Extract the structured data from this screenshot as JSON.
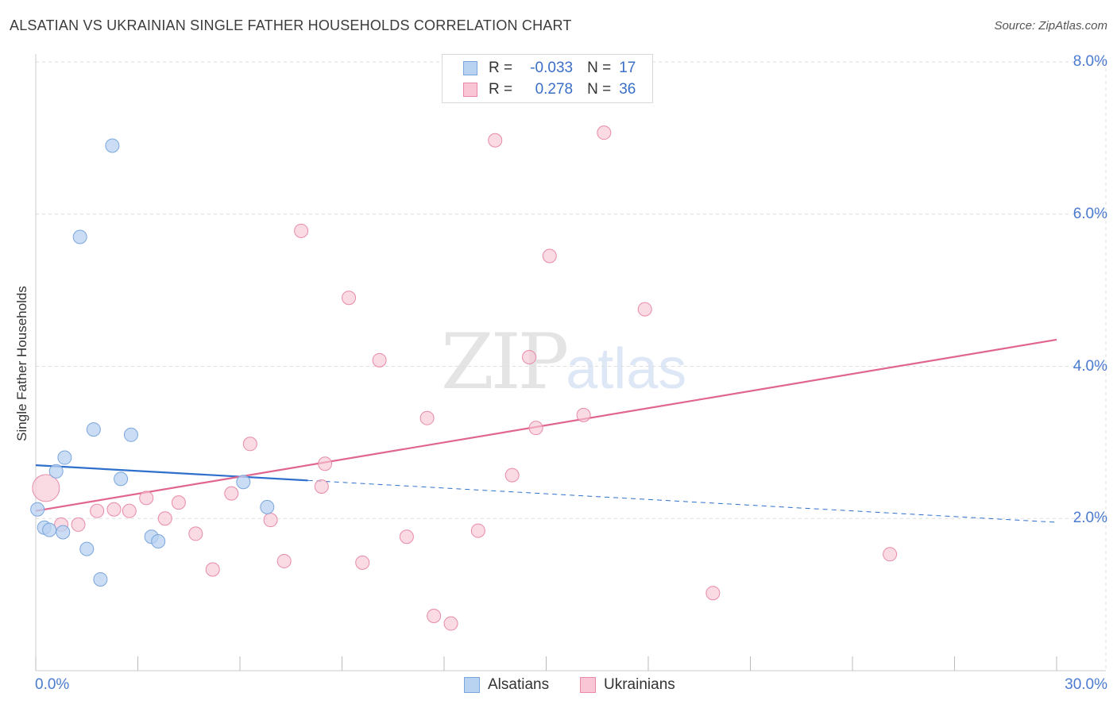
{
  "title": "ALSATIAN VS UKRAINIAN SINGLE FATHER HOUSEHOLDS CORRELATION CHART",
  "source": "Source: ZipAtlas.com",
  "watermark": {
    "zip": "ZIP",
    "atlas": "atlas"
  },
  "legend": {
    "rows": [
      {
        "r_label": "R =",
        "r_value": "-0.033",
        "n_label": "N =",
        "n_value": "17"
      },
      {
        "r_label": "R =",
        "r_value": "0.278",
        "n_label": "N =",
        "n_value": "36"
      }
    ]
  },
  "bottom_legend": [
    "Alsatians",
    "Ukrainians"
  ],
  "colors": {
    "alsatian_fill": "#b8d2f2",
    "alsatian_stroke": "#7aa6dc",
    "alsatian_line": "#2e6fcc",
    "ukrainian_fill": "#f8c6d4",
    "ukrainian_stroke": "#e88aa8",
    "ukrainian_line": "#e0668f",
    "tick_text": "#4a7bd0",
    "grid": "#dddddd"
  },
  "chart_data": {
    "type": "scatter",
    "title": "ALSATIAN VS UKRAINIAN SINGLE FATHER HOUSEHOLDS CORRELATION CHART",
    "xlabel": "",
    "ylabel": "Single Father Households",
    "xlim": [
      0,
      30
    ],
    "ylim": [
      0,
      8
    ],
    "x_tick_labels": [
      "0.0%",
      "30.0%"
    ],
    "y_ticks": [
      2,
      4,
      6,
      8
    ],
    "y_tick_labels": [
      "2.0%",
      "4.0%",
      "6.0%",
      "8.0%"
    ],
    "series": [
      {
        "name": "Alsatians",
        "R": -0.033,
        "N": 17,
        "points": [
          {
            "x": 0.05,
            "y": 2.12
          },
          {
            "x": 0.25,
            "y": 1.88
          },
          {
            "x": 0.4,
            "y": 1.85
          },
          {
            "x": 0.6,
            "y": 2.62
          },
          {
            "x": 0.8,
            "y": 1.82
          },
          {
            "x": 0.85,
            "y": 2.8
          },
          {
            "x": 1.5,
            "y": 1.6
          },
          {
            "x": 1.7,
            "y": 3.17
          },
          {
            "x": 1.9,
            "y": 1.2
          },
          {
            "x": 2.25,
            "y": 6.9
          },
          {
            "x": 1.3,
            "y": 5.7
          },
          {
            "x": 2.5,
            "y": 2.52
          },
          {
            "x": 2.8,
            "y": 3.1
          },
          {
            "x": 3.4,
            "y": 1.76
          },
          {
            "x": 3.6,
            "y": 1.7
          },
          {
            "x": 6.1,
            "y": 2.48
          },
          {
            "x": 6.8,
            "y": 2.15
          }
        ],
        "trend": {
          "x0": 0,
          "y0": 2.7,
          "x1": 8,
          "y1": 2.5,
          "dash_x1": 30,
          "dash_y1": 1.95
        }
      },
      {
        "name": "Ukrainians",
        "R": 0.278,
        "N": 36,
        "points": [
          {
            "x": 0.3,
            "y": 2.4,
            "big": true
          },
          {
            "x": 0.75,
            "y": 1.92
          },
          {
            "x": 1.25,
            "y": 1.92
          },
          {
            "x": 1.8,
            "y": 2.1
          },
          {
            "x": 2.3,
            "y": 2.12
          },
          {
            "x": 2.75,
            "y": 2.1
          },
          {
            "x": 3.25,
            "y": 2.27
          },
          {
            "x": 3.8,
            "y": 2.0
          },
          {
            "x": 4.2,
            "y": 2.21
          },
          {
            "x": 4.7,
            "y": 1.8
          },
          {
            "x": 5.2,
            "y": 1.33
          },
          {
            "x": 5.75,
            "y": 2.33
          },
          {
            "x": 6.3,
            "y": 2.98
          },
          {
            "x": 6.9,
            "y": 1.98
          },
          {
            "x": 7.3,
            "y": 1.44
          },
          {
            "x": 7.8,
            "y": 5.78
          },
          {
            "x": 8.5,
            "y": 2.72
          },
          {
            "x": 8.4,
            "y": 2.42
          },
          {
            "x": 9.2,
            "y": 4.9
          },
          {
            "x": 9.6,
            "y": 1.42
          },
          {
            "x": 10.1,
            "y": 4.08
          },
          {
            "x": 10.9,
            "y": 1.76
          },
          {
            "x": 11.5,
            "y": 3.32
          },
          {
            "x": 11.7,
            "y": 0.72
          },
          {
            "x": 12.2,
            "y": 0.62
          },
          {
            "x": 13.0,
            "y": 1.84
          },
          {
            "x": 13.5,
            "y": 6.97
          },
          {
            "x": 14.0,
            "y": 2.57
          },
          {
            "x": 14.5,
            "y": 4.12
          },
          {
            "x": 14.7,
            "y": 3.19
          },
          {
            "x": 15.1,
            "y": 5.45
          },
          {
            "x": 16.1,
            "y": 3.36
          },
          {
            "x": 16.7,
            "y": 7.07
          },
          {
            "x": 17.9,
            "y": 4.75
          },
          {
            "x": 19.9,
            "y": 1.02
          },
          {
            "x": 25.1,
            "y": 1.53
          }
        ],
        "trend": {
          "x0": 0,
          "y0": 2.1,
          "x1": 30,
          "y1": 4.35
        }
      }
    ]
  }
}
